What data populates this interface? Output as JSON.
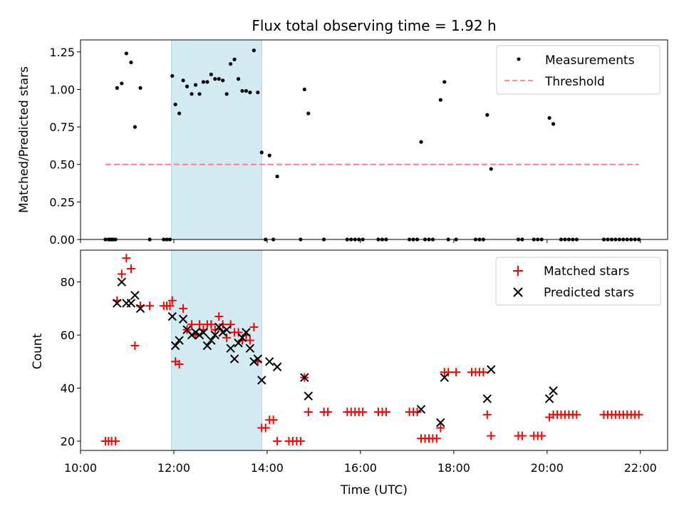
{
  "chart_data": {
    "title": "Flux total observing time = 1.92 h",
    "shaded_interval": {
      "start": "11:57",
      "end": "13:53",
      "color": "#add8e6"
    },
    "x_axis": {
      "label": "Time (UTC)",
      "range": [
        "10:00",
        "22:35"
      ],
      "ticks": [
        "10:00",
        "12:00",
        "14:00",
        "16:00",
        "18:00",
        "20:00",
        "22:00"
      ]
    },
    "panels": [
      {
        "type": "scatter",
        "ylabel": "Matched/Predicted stars",
        "ylim": [
          0,
          1.33
        ],
        "yticks": [
          "0.00",
          "0.25",
          "0.50",
          "0.75",
          "1.00",
          "1.25"
        ],
        "legend_position": "top-right",
        "series": [
          {
            "name": "Measurements",
            "marker": "dot",
            "color": "#000000",
            "points": [
              [
                "10:32",
                0
              ],
              [
                "10:36",
                0
              ],
              [
                "10:38",
                0
              ],
              [
                "10:40",
                0
              ],
              [
                "10:42",
                0
              ],
              [
                "10:45",
                0
              ],
              [
                "10:47",
                1.01
              ],
              [
                "10:53",
                1.04
              ],
              [
                "10:59",
                1.24
              ],
              [
                "11:05",
                1.18
              ],
              [
                "11:10",
                0.75
              ],
              [
                "11:17",
                1.01
              ],
              [
                "11:29",
                0
              ],
              [
                "11:47",
                0
              ],
              [
                "11:51",
                0
              ],
              [
                "11:55",
                0
              ],
              [
                "11:58",
                1.09
              ],
              [
                "12:02",
                0.9
              ],
              [
                "12:07",
                0.84
              ],
              [
                "12:12",
                1.06
              ],
              [
                "12:17",
                1.02
              ],
              [
                "12:23",
                0.97
              ],
              [
                "12:28",
                1.03
              ],
              [
                "12:33",
                0.97
              ],
              [
                "12:38",
                1.05
              ],
              [
                "12:43",
                1.05
              ],
              [
                "12:48",
                1.1
              ],
              [
                "12:53",
                1.07
              ],
              [
                "12:58",
                1.07
              ],
              [
                "13:03",
                1.06
              ],
              [
                "13:08",
                0.97
              ],
              [
                "13:13",
                1.17
              ],
              [
                "13:18",
                1.2
              ],
              [
                "13:23",
                1.07
              ],
              [
                "13:28",
                0.99
              ],
              [
                "13:33",
                0.99
              ],
              [
                "13:38",
                0.98
              ],
              [
                "13:43",
                1.26
              ],
              [
                "13:48",
                0.98
              ],
              [
                "13:53",
                0.58
              ],
              [
                "13:58",
                0
              ],
              [
                "14:03",
                0.56
              ],
              [
                "14:08",
                0
              ],
              [
                "14:13",
                0.42
              ],
              [
                "14:43",
                0
              ],
              [
                "14:48",
                1.0
              ],
              [
                "14:53",
                0.84
              ],
              [
                "15:13",
                0
              ],
              [
                "15:43",
                0
              ],
              [
                "15:48",
                0
              ],
              [
                "15:53",
                0
              ],
              [
                "15:58",
                0
              ],
              [
                "16:03",
                0
              ],
              [
                "16:23",
                0
              ],
              [
                "16:28",
                0
              ],
              [
                "16:33",
                0
              ],
              [
                "17:03",
                0
              ],
              [
                "17:08",
                0
              ],
              [
                "17:13",
                0
              ],
              [
                "17:18",
                0.65
              ],
              [
                "17:23",
                0
              ],
              [
                "17:28",
                0
              ],
              [
                "17:33",
                0
              ],
              [
                "17:43",
                0.93
              ],
              [
                "17:48",
                1.05
              ],
              [
                "17:53",
                0
              ],
              [
                "18:03",
                0
              ],
              [
                "18:28",
                0
              ],
              [
                "18:33",
                0
              ],
              [
                "18:38",
                0
              ],
              [
                "18:43",
                0.83
              ],
              [
                "18:48",
                0.47
              ],
              [
                "19:23",
                0
              ],
              [
                "19:28",
                0
              ],
              [
                "19:43",
                0
              ],
              [
                "19:48",
                0
              ],
              [
                "19:53",
                0
              ],
              [
                "20:03",
                0.81
              ],
              [
                "20:08",
                0.77
              ],
              [
                "20:18",
                0
              ],
              [
                "20:23",
                0
              ],
              [
                "20:28",
                0
              ],
              [
                "20:33",
                0
              ],
              [
                "20:38",
                0
              ],
              [
                "21:13",
                0
              ],
              [
                "21:18",
                0
              ],
              [
                "21:23",
                0
              ],
              [
                "21:28",
                0
              ],
              [
                "21:33",
                0
              ],
              [
                "21:38",
                0
              ],
              [
                "21:43",
                0
              ],
              [
                "21:48",
                0
              ],
              [
                "21:53",
                0
              ],
              [
                "21:58",
                0
              ]
            ]
          },
          {
            "name": "Threshold",
            "type": "line",
            "style": "dashed",
            "color": "#ff7f7f",
            "points": [
              [
                "10:32",
                0.5
              ],
              [
                "21:58",
                0.5
              ]
            ]
          }
        ]
      },
      {
        "type": "scatter",
        "ylabel": "Count",
        "ylim": [
          16.5,
          92
        ],
        "yticks": [
          "20",
          "40",
          "60",
          "80"
        ],
        "legend_position": "top-right",
        "series": [
          {
            "name": "Matched stars",
            "marker": "plus",
            "color": "#ff0000",
            "points": [
              [
                "10:32",
                20
              ],
              [
                "10:36",
                20
              ],
              [
                "10:40",
                20
              ],
              [
                "10:45",
                20
              ],
              [
                "10:47",
                73
              ],
              [
                "10:53",
                83
              ],
              [
                "10:59",
                89
              ],
              [
                "11:05",
                85
              ],
              [
                "11:10",
                56
              ],
              [
                "11:17",
                71
              ],
              [
                "11:29",
                71
              ],
              [
                "11:47",
                71
              ],
              [
                "11:51",
                71
              ],
              [
                "11:55",
                71
              ],
              [
                "11:58",
                73
              ],
              [
                "12:02",
                50
              ],
              [
                "12:07",
                49
              ],
              [
                "12:12",
                70
              ],
              [
                "12:17",
                62
              ],
              [
                "12:23",
                64
              ],
              [
                "12:28",
                60
              ],
              [
                "12:33",
                64
              ],
              [
                "12:38",
                62
              ],
              [
                "12:43",
                64
              ],
              [
                "12:48",
                64
              ],
              [
                "12:53",
                62
              ],
              [
                "12:58",
                67
              ],
              [
                "13:03",
                64
              ],
              [
                "13:08",
                59
              ],
              [
                "13:13",
                64
              ],
              [
                "13:18",
                61
              ],
              [
                "13:23",
                61
              ],
              [
                "13:28",
                58
              ],
              [
                "13:33",
                60
              ],
              [
                "13:38",
                58
              ],
              [
                "13:43",
                63
              ],
              [
                "13:48",
                50
              ],
              [
                "13:53",
                25
              ],
              [
                "13:58",
                25
              ],
              [
                "14:03",
                28
              ],
              [
                "14:08",
                28
              ],
              [
                "14:13",
                20
              ],
              [
                "14:28",
                20
              ],
              [
                "14:33",
                20
              ],
              [
                "14:38",
                20
              ],
              [
                "14:43",
                20
              ],
              [
                "14:48",
                44
              ],
              [
                "14:53",
                31
              ],
              [
                "15:13",
                31
              ],
              [
                "15:18",
                31
              ],
              [
                "15:43",
                31
              ],
              [
                "15:48",
                31
              ],
              [
                "15:53",
                31
              ],
              [
                "15:58",
                31
              ],
              [
                "16:03",
                31
              ],
              [
                "16:23",
                31
              ],
              [
                "16:28",
                31
              ],
              [
                "16:33",
                31
              ],
              [
                "17:03",
                31
              ],
              [
                "17:08",
                31
              ],
              [
                "17:13",
                31
              ],
              [
                "17:18",
                21
              ],
              [
                "17:23",
                21
              ],
              [
                "17:28",
                21
              ],
              [
                "17:33",
                21
              ],
              [
                "17:38",
                21
              ],
              [
                "17:43",
                25
              ],
              [
                "17:48",
                46
              ],
              [
                "17:53",
                46
              ],
              [
                "18:03",
                46
              ],
              [
                "18:23",
                46
              ],
              [
                "18:28",
                46
              ],
              [
                "18:33",
                46
              ],
              [
                "18:38",
                46
              ],
              [
                "18:43",
                30
              ],
              [
                "18:48",
                22
              ],
              [
                "19:23",
                22
              ],
              [
                "19:28",
                22
              ],
              [
                "19:43",
                22
              ],
              [
                "19:48",
                22
              ],
              [
                "19:53",
                22
              ],
              [
                "20:03",
                29
              ],
              [
                "20:08",
                30
              ],
              [
                "20:13",
                30
              ],
              [
                "20:18",
                30
              ],
              [
                "20:23",
                30
              ],
              [
                "20:28",
                30
              ],
              [
                "20:33",
                30
              ],
              [
                "20:38",
                30
              ],
              [
                "21:13",
                30
              ],
              [
                "21:18",
                30
              ],
              [
                "21:23",
                30
              ],
              [
                "21:28",
                30
              ],
              [
                "21:33",
                30
              ],
              [
                "21:38",
                30
              ],
              [
                "21:43",
                30
              ],
              [
                "21:48",
                30
              ],
              [
                "21:53",
                30
              ],
              [
                "21:58",
                30
              ]
            ]
          },
          {
            "name": "Predicted stars",
            "marker": "x",
            "color": "#000000",
            "points": [
              [
                "10:47",
                72
              ],
              [
                "10:53",
                80
              ],
              [
                "10:59",
                72
              ],
              [
                "11:05",
                72
              ],
              [
                "11:10",
                75
              ],
              [
                "11:17",
                70
              ],
              [
                "11:58",
                67
              ],
              [
                "12:02",
                56
              ],
              [
                "12:07",
                58
              ],
              [
                "12:12",
                66
              ],
              [
                "12:17",
                62
              ],
              [
                "12:23",
                60
              ],
              [
                "12:28",
                61
              ],
              [
                "12:33",
                60
              ],
              [
                "12:38",
                61
              ],
              [
                "12:43",
                56
              ],
              [
                "12:48",
                58
              ],
              [
                "12:53",
                60
              ],
              [
                "12:58",
                63
              ],
              [
                "13:03",
                61
              ],
              [
                "13:08",
                62
              ],
              [
                "13:13",
                55
              ],
              [
                "13:18",
                51
              ],
              [
                "13:23",
                57
              ],
              [
                "13:28",
                59
              ],
              [
                "13:33",
                61
              ],
              [
                "13:38",
                55
              ],
              [
                "13:43",
                50
              ],
              [
                "13:48",
                51
              ],
              [
                "13:53",
                43
              ],
              [
                "14:03",
                50
              ],
              [
                "14:13",
                48
              ],
              [
                "14:48",
                44
              ],
              [
                "14:53",
                37
              ],
              [
                "17:18",
                32
              ],
              [
                "17:43",
                27
              ],
              [
                "17:48",
                44
              ],
              [
                "18:43",
                36
              ],
              [
                "18:48",
                47
              ],
              [
                "20:03",
                36
              ],
              [
                "20:08",
                39
              ]
            ]
          }
        ]
      }
    ]
  }
}
